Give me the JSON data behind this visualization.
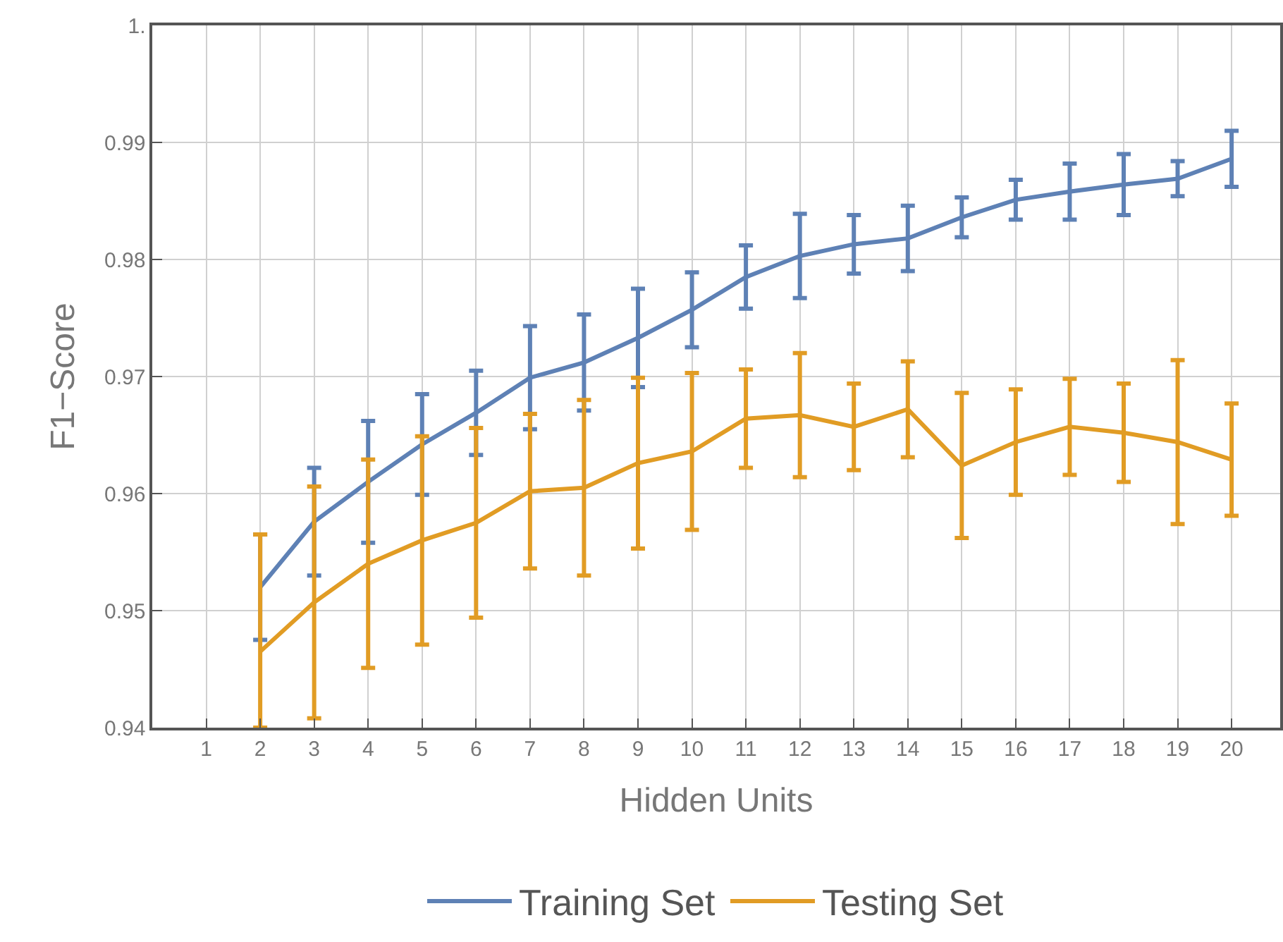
{
  "chart_data": {
    "type": "line",
    "xlabel": "Hidden Units",
    "ylabel": "F1−Score",
    "x": [
      2,
      3,
      4,
      5,
      6,
      7,
      8,
      9,
      10,
      11,
      12,
      13,
      14,
      15,
      16,
      17,
      18,
      19,
      20
    ],
    "series": [
      {
        "name": "Training Set",
        "color": "#5e81b5",
        "values": [
          0.952,
          0.9576,
          0.961,
          0.9642,
          0.9669,
          0.9699,
          0.9712,
          0.9733,
          0.9757,
          0.9785,
          0.9803,
          0.9813,
          0.9818,
          0.9836,
          0.9851,
          0.9858,
          0.9864,
          0.9869,
          0.9886
        ],
        "errors": [
          0.0045,
          0.0046,
          0.0052,
          0.0043,
          0.0036,
          0.0044,
          0.0041,
          0.0042,
          0.0032,
          0.0027,
          0.0036,
          0.0025,
          0.0028,
          0.0017,
          0.0017,
          0.0024,
          0.0026,
          0.0015,
          0.0024
        ]
      },
      {
        "name": "Testing Set",
        "color": "#e19c24",
        "values": [
          0.9465,
          0.9507,
          0.954,
          0.956,
          0.9575,
          0.9602,
          0.9605,
          0.9626,
          0.9636,
          0.9664,
          0.9667,
          0.9657,
          0.9672,
          0.9624,
          0.9644,
          0.9657,
          0.9652,
          0.9644,
          0.9629
        ],
        "errors": [
          [
            0.94,
            0.9565
          ],
          0.0099,
          0.0089,
          0.0089,
          0.0081,
          0.0066,
          0.0075,
          0.0073,
          0.0067,
          0.0042,
          0.0053,
          0.0037,
          0.0041,
          0.0062,
          0.0045,
          0.0041,
          0.0042,
          0.007,
          0.0048
        ]
      }
    ],
    "xlim": [
      0,
      20.9
    ],
    "xticks": [
      1,
      2,
      3,
      4,
      5,
      6,
      7,
      8,
      9,
      10,
      11,
      12,
      13,
      14,
      15,
      16,
      17,
      18,
      19,
      20
    ],
    "ylim": [
      0.94,
      1
    ],
    "yticks": [
      0.94,
      0.95,
      0.96,
      0.97,
      0.98,
      0.99,
      {
        "value": 1,
        "label": "1."
      }
    ],
    "grid": true,
    "legend": "bottom",
    "marker": "none",
    "line_style": "solid"
  }
}
